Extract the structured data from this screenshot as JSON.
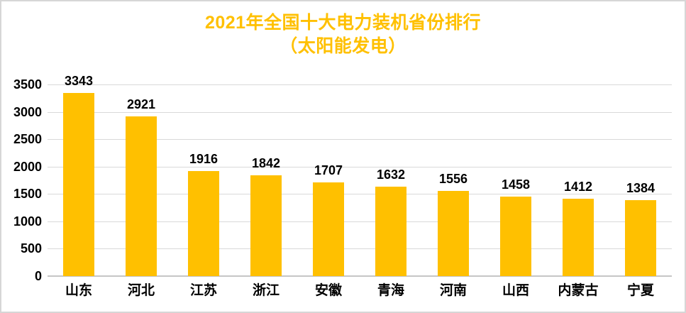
{
  "title": {
    "line1": "2021年全国十大电力装机省份排行",
    "line2": "（太阳能发电）"
  },
  "colors": {
    "accent": "#FFC000",
    "bar": "#FFC000",
    "gridline": "#D9D9D9",
    "baseline": "#C6C6C6",
    "label": "#000000",
    "frame_border": "#D6D6D6",
    "background": "#FFFFFF"
  },
  "chart_data": {
    "type": "bar",
    "title": "2021年全国十大电力装机省份排行（太阳能发电）",
    "categories": [
      "山东",
      "河北",
      "江苏",
      "浙江",
      "安徽",
      "青海",
      "河南",
      "山西",
      "内蒙古",
      "宁夏"
    ],
    "values": [
      3343,
      2921,
      1916,
      1842,
      1707,
      1632,
      1556,
      1458,
      1412,
      1384
    ],
    "xlabel": "",
    "ylabel": "",
    "ylim": [
      0,
      3500
    ],
    "yticks": [
      0,
      500,
      1000,
      1500,
      2000,
      2500,
      3000,
      3500
    ],
    "grid": true,
    "legend": false,
    "data_labels": true,
    "bar_color": "#FFC000"
  }
}
